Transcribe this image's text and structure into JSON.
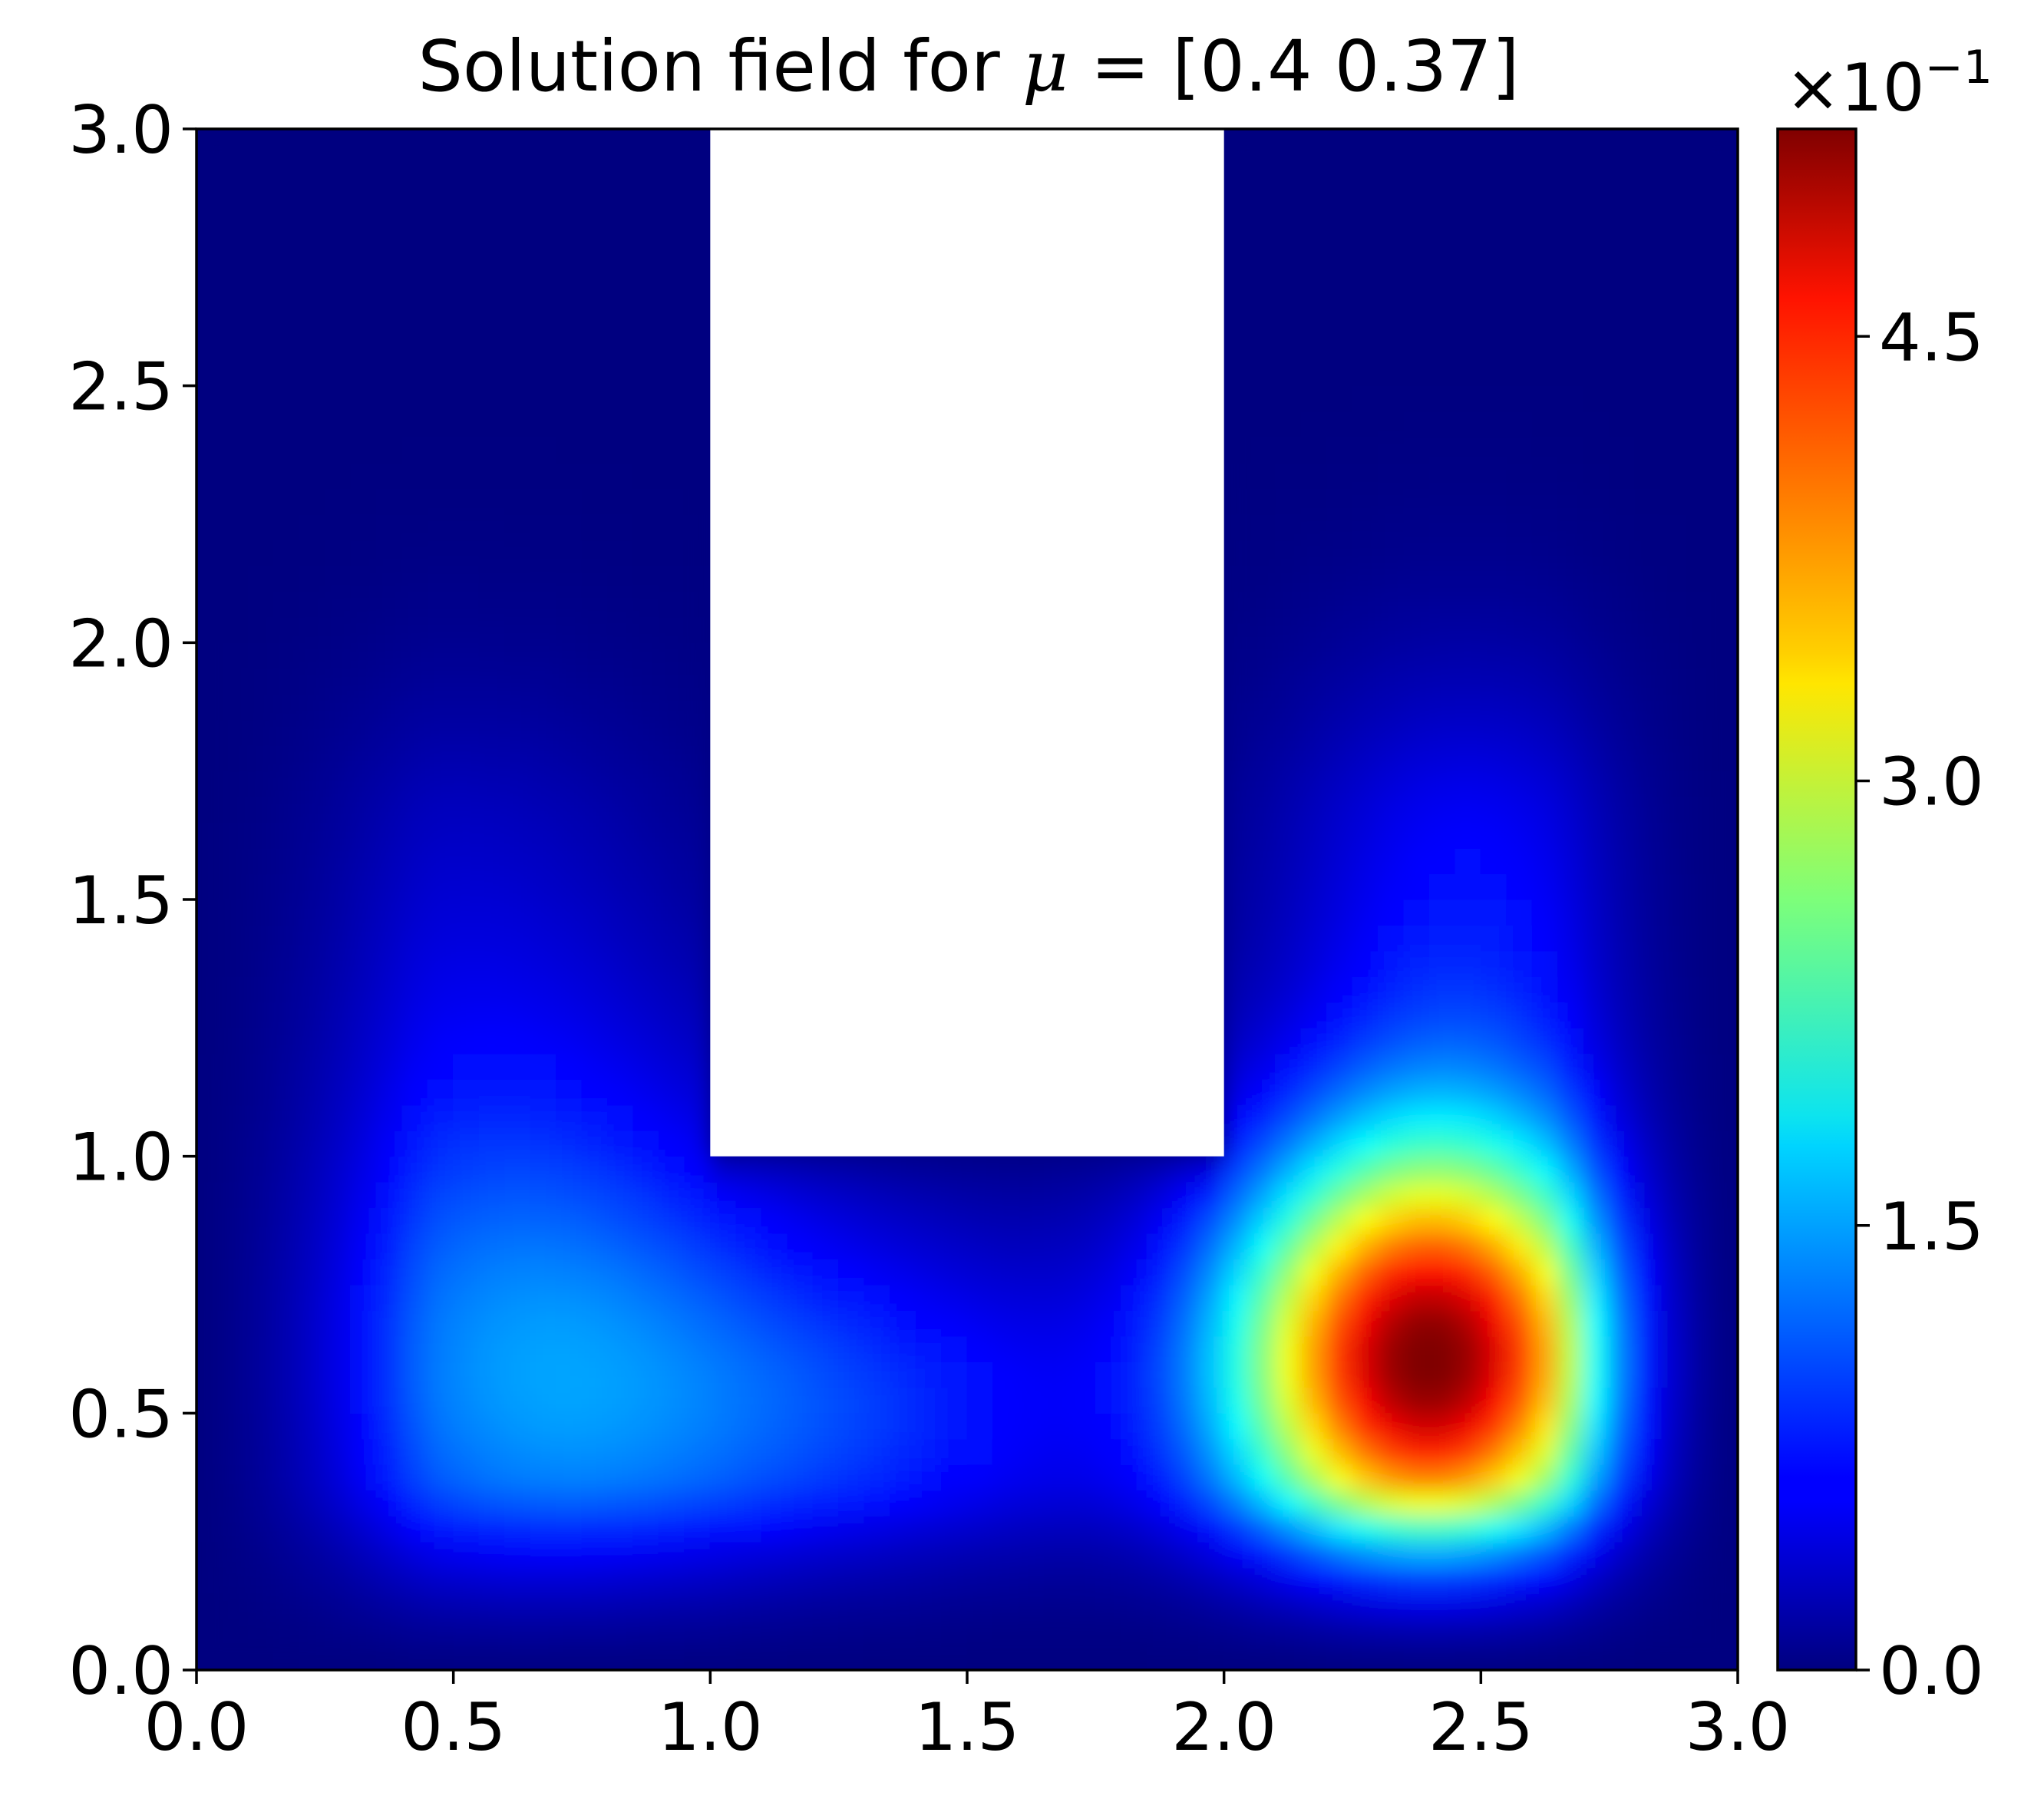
{
  "chart_data": {
    "type": "heatmap",
    "title": {
      "prefix": "Solution field for ",
      "symbol": "μ",
      "suffix": " = [0.4  0.37]"
    },
    "xlabel": "",
    "ylabel": "",
    "xlim": [
      0.0,
      3.0
    ],
    "ylim": [
      0.0,
      3.0
    ],
    "x_ticks": [
      "0.0",
      "0.5",
      "1.0",
      "1.5",
      "2.0",
      "2.5",
      "3.0"
    ],
    "y_ticks": [
      "0.0",
      "0.5",
      "1.0",
      "1.5",
      "2.0",
      "2.5",
      "3.0"
    ],
    "grid": false,
    "domain": "U-shaped region: square [0,3]x[0,3] minus the rectangle [1,2]x[1,3]",
    "cutout": {
      "x": [
        1.0,
        2.0
      ],
      "y": [
        1.0,
        3.0
      ]
    },
    "field_peaks": [
      {
        "x": 2.4,
        "y": 0.6,
        "value": 0.52,
        "label": "global maximum"
      },
      {
        "x": 0.62,
        "y": 0.6,
        "value": 0.13,
        "label": "local maximum"
      }
    ],
    "colorbar": {
      "colormap": "jet",
      "multiplier_base": "×10",
      "multiplier_exponent": "−1",
      "range": [
        0.0,
        5.2
      ],
      "ticks": [
        {
          "value": 0.0,
          "label": "0.0"
        },
        {
          "value": 1.5,
          "label": "1.5"
        },
        {
          "value": 3.0,
          "label": "3.0"
        },
        {
          "value": 4.5,
          "label": "4.5"
        }
      ]
    }
  }
}
